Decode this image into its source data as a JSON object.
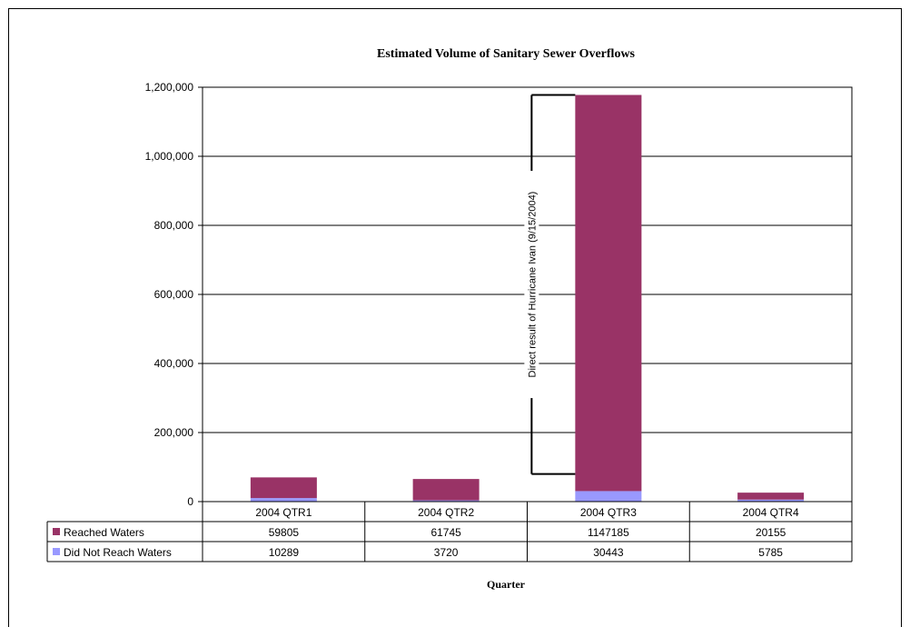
{
  "chart_data": {
    "type": "bar",
    "stacked": true,
    "title": "Estimated Volume of Sanitary Sewer Overflows",
    "xlabel": "Quarter",
    "ylabel": "",
    "categories": [
      "2004 QTR1",
      "2004 QTR2",
      "2004 QTR3",
      "2004 QTR4"
    ],
    "ylim": [
      0,
      1200000
    ],
    "yticks": [
      0,
      200000,
      400000,
      600000,
      800000,
      1000000,
      1200000
    ],
    "ytick_labels": [
      "0",
      "200,000",
      "400,000",
      "600,000",
      "800,000",
      "1,000,000",
      "1,200,000"
    ],
    "grid": true,
    "legend": "data-table",
    "series": [
      {
        "name": "Did Not Reach Waters",
        "values": [
          10289,
          3720,
          30443,
          5785
        ],
        "labels": [
          "10289",
          "3720",
          "30443",
          "5785"
        ],
        "color": "#9999ff"
      },
      {
        "name": "Reached Waters",
        "values": [
          59805,
          61745,
          1147185,
          20155
        ],
        "labels": [
          "59805",
          "61745",
          "1147185",
          "20155"
        ],
        "color": "#993366"
      }
    ],
    "annotations": [
      {
        "text": "Direct result of Hurricane Ivan (9/15/2004)",
        "category": "2004 QTR3",
        "span": [
          80000,
          1177628
        ]
      }
    ]
  }
}
